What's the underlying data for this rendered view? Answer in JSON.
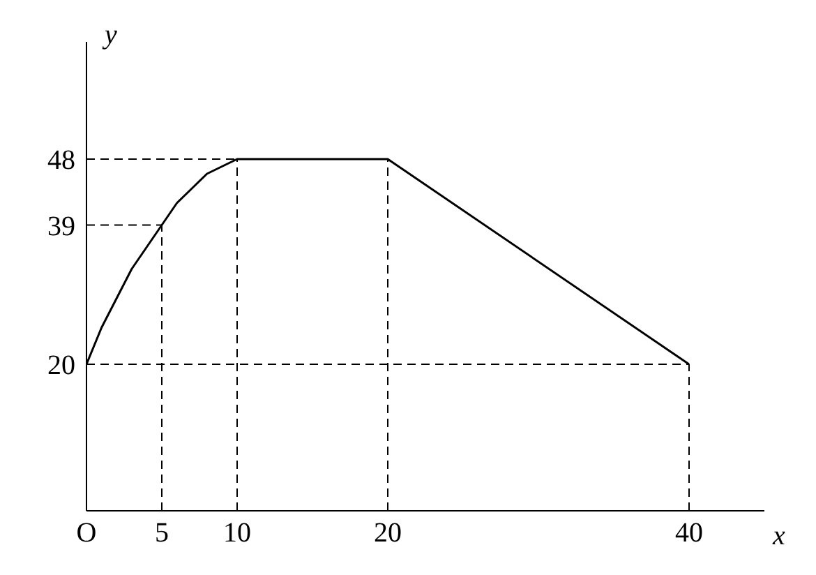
{
  "chart_data": {
    "type": "line",
    "xlabel": "x",
    "ylabel": "y",
    "x": [
      0,
      1,
      2,
      3,
      4,
      5,
      6,
      7,
      8,
      9,
      10,
      20,
      40
    ],
    "series": [
      {
        "color": "#000000",
        "values": [
          20,
          25,
          29,
          33,
          36,
          39,
          42,
          44,
          46,
          47,
          48,
          48,
          20
        ]
      }
    ],
    "xlim": [
      0,
      45
    ],
    "ylim": [
      0,
      64
    ],
    "xticks": [
      {
        "value": 0,
        "label": "O"
      },
      5,
      10,
      20,
      40
    ],
    "yticks": [
      20,
      39,
      48
    ],
    "grid": false,
    "legend": false,
    "marker": "none",
    "line_style": "solid",
    "ref_lines": [
      {
        "axis": "x",
        "value": 5,
        "line_style": "dashed",
        "color": "#000000"
      },
      {
        "axis": "x",
        "value": 10,
        "line_style": "dashed",
        "color": "#000000"
      },
      {
        "axis": "x",
        "value": 20,
        "line_style": "dashed",
        "color": "#000000"
      },
      {
        "axis": "x",
        "value": 40,
        "line_style": "dashed",
        "color": "#000000"
      },
      {
        "axis": "y",
        "value": 20,
        "line_style": "dashed",
        "color": "#000000"
      },
      {
        "axis": "y",
        "value": 39,
        "line_style": "dashed",
        "color": "#000000"
      },
      {
        "axis": "y",
        "value": 48,
        "line_style": "dashed",
        "color": "#000000"
      }
    ]
  }
}
